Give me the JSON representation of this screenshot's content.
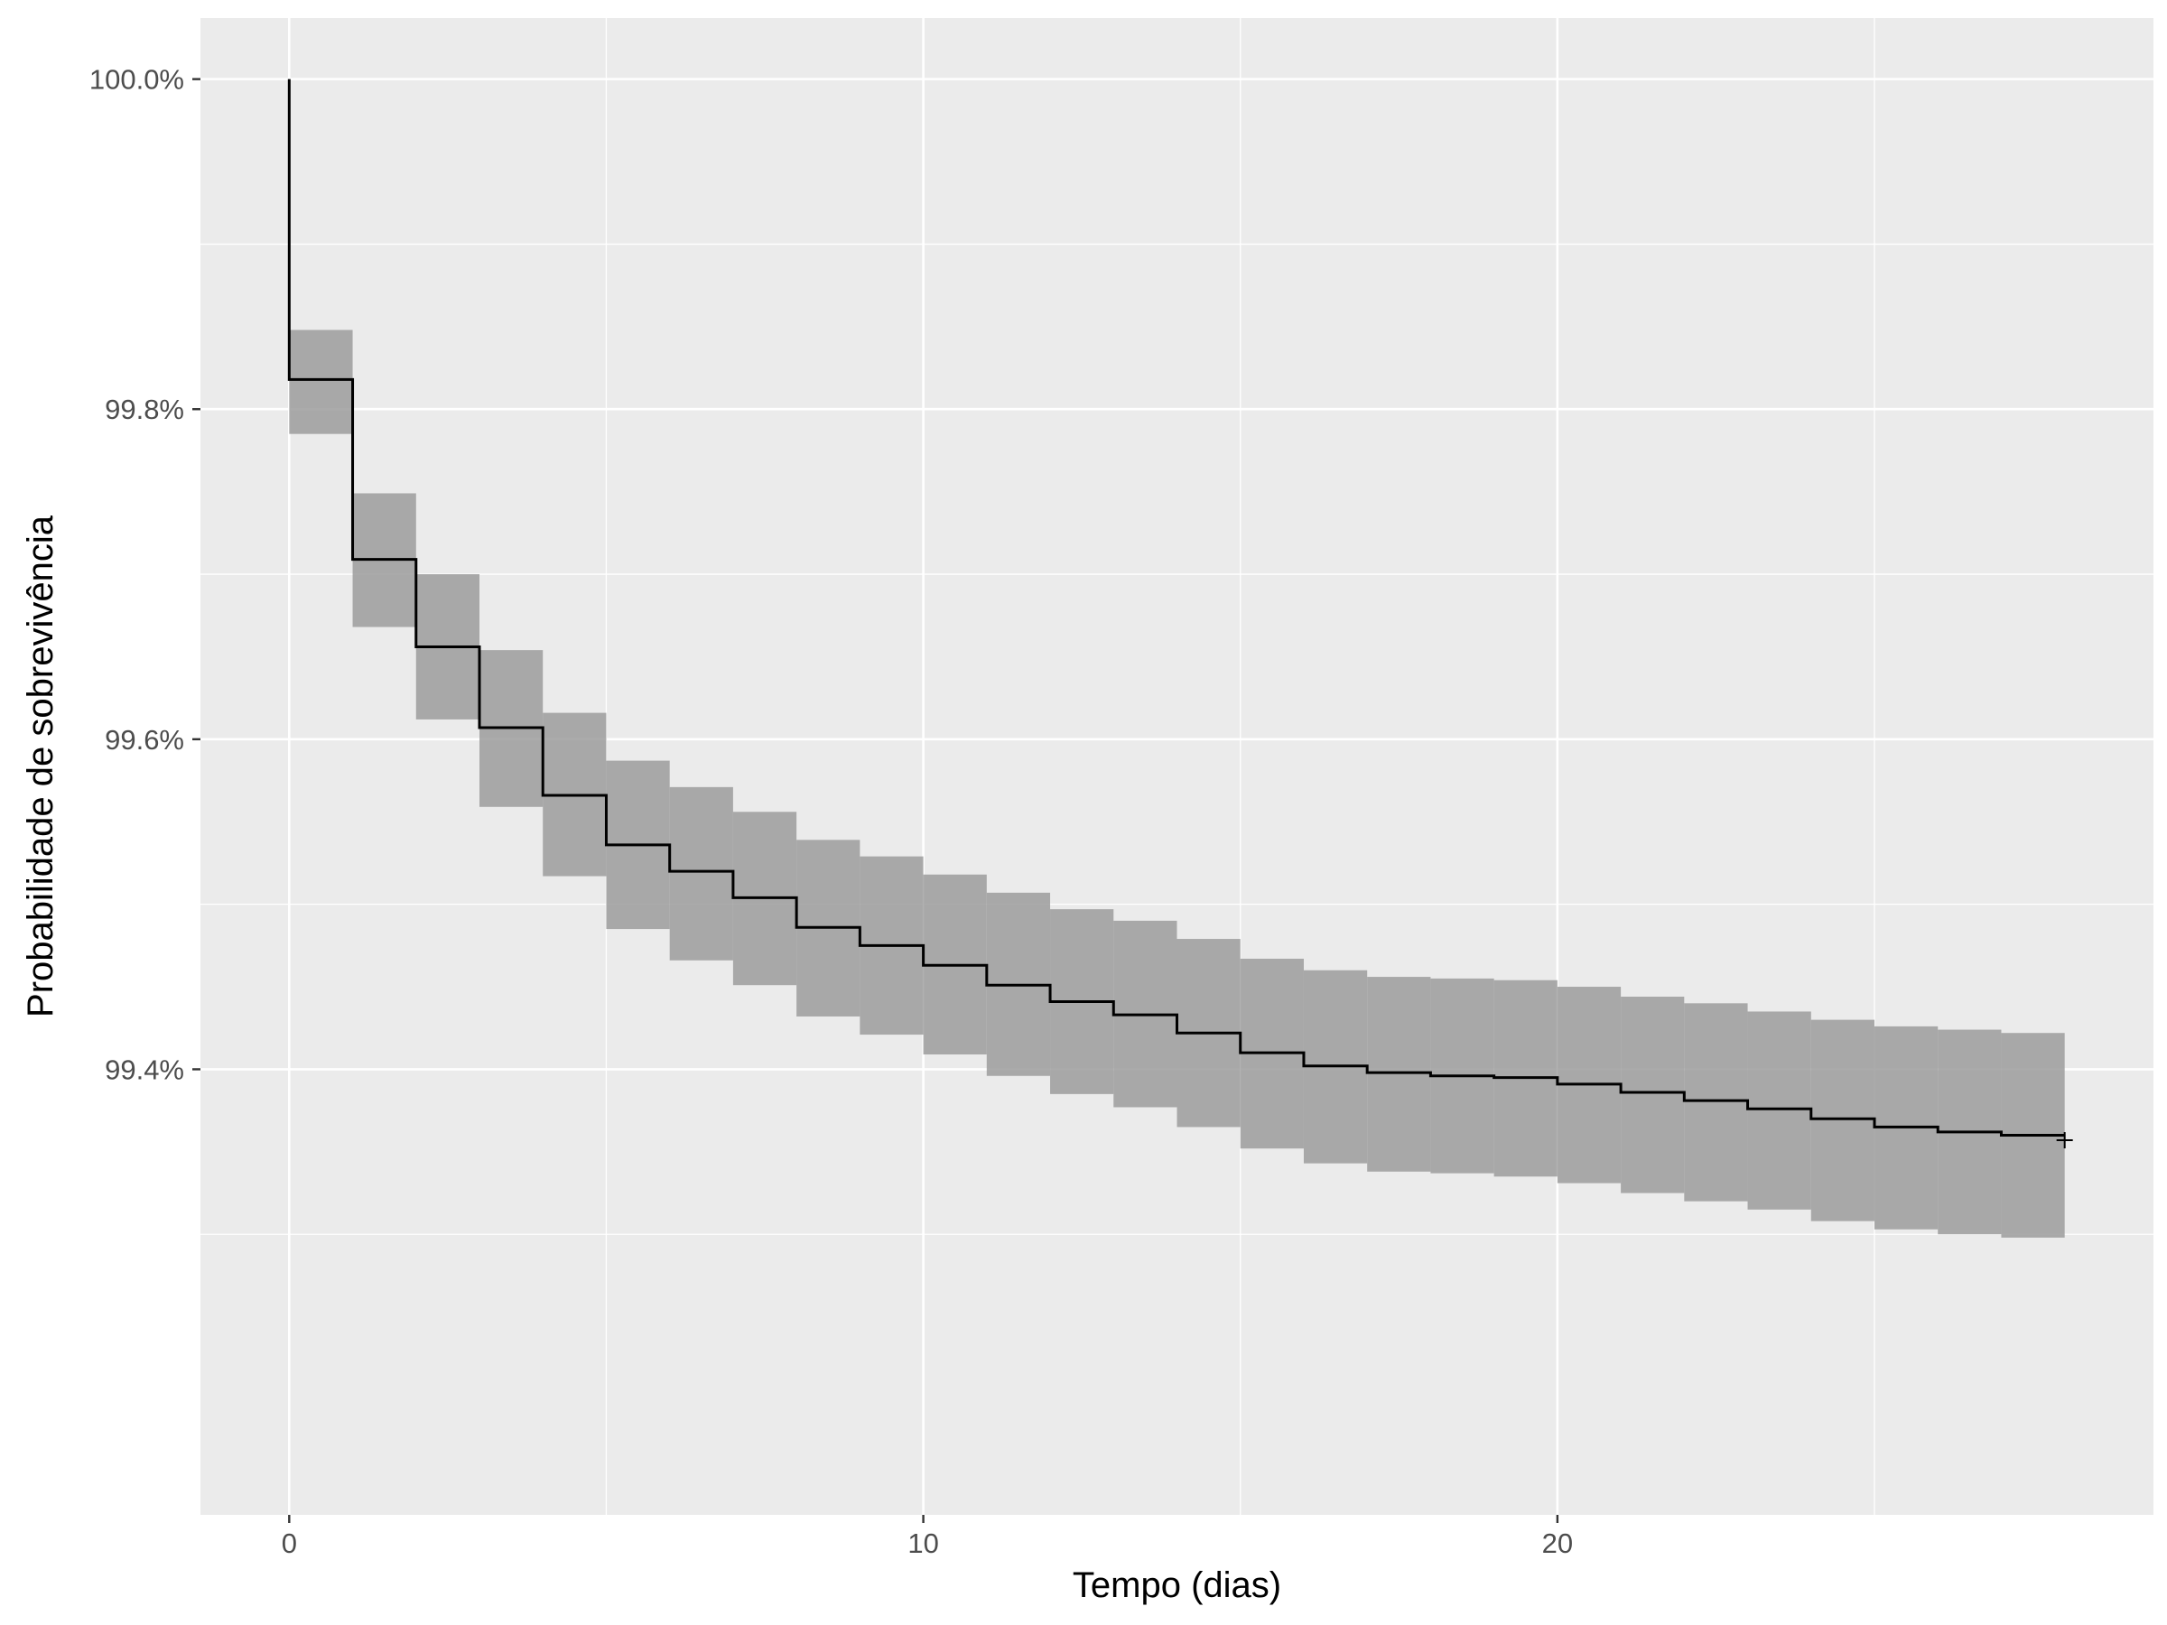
{
  "chart_data": {
    "type": "line",
    "subtype": "kaplan-meier step curve with confidence band",
    "title": "",
    "xlabel": "Tempo (dias)",
    "ylabel": "Probabilidade de sobrevivência",
    "xlim": [
      -1.4,
      29.4
    ],
    "ylim": [
      99.13,
      100.037
    ],
    "x_ticks": [
      0,
      10,
      20
    ],
    "x_tick_labels": [
      "0",
      "10",
      "20"
    ],
    "y_ticks": [
      99.4,
      99.6,
      99.8,
      100.0
    ],
    "y_tick_labels": [
      "99.4%",
      "99.6%",
      "99.8%",
      "100.0%"
    ],
    "grid": true,
    "colors": {
      "panel_background": "#ebebeb",
      "grid": "#ffffff",
      "line": "#000000",
      "band": "#999999"
    },
    "series": [
      {
        "name": "survival",
        "x": [
          0,
          1,
          2,
          3,
          4,
          5,
          6,
          7,
          8,
          9,
          10,
          11,
          12,
          13,
          14,
          15,
          16,
          17,
          18,
          19,
          20,
          21,
          22,
          23,
          24,
          25,
          26,
          27
        ],
        "y": [
          99.818,
          99.709,
          99.656,
          99.607,
          99.566,
          99.536,
          99.52,
          99.504,
          99.486,
          99.475,
          99.463,
          99.451,
          99.441,
          99.433,
          99.422,
          99.41,
          99.402,
          99.398,
          99.396,
          99.395,
          99.391,
          99.386,
          99.381,
          99.376,
          99.37,
          99.365,
          99.362,
          99.36
        ],
        "lower": [
          99.785,
          99.668,
          99.612,
          99.559,
          99.517,
          99.485,
          99.466,
          99.451,
          99.432,
          99.421,
          99.409,
          99.396,
          99.385,
          99.377,
          99.365,
          99.352,
          99.343,
          99.338,
          99.337,
          99.335,
          99.331,
          99.325,
          99.32,
          99.315,
          99.308,
          99.303,
          99.3,
          99.298
        ],
        "upper": [
          99.848,
          99.749,
          99.7,
          99.654,
          99.616,
          99.587,
          99.571,
          99.556,
          99.539,
          99.529,
          99.518,
          99.507,
          99.497,
          99.49,
          99.479,
          99.467,
          99.46,
          99.456,
          99.455,
          99.454,
          99.45,
          99.444,
          99.44,
          99.435,
          99.43,
          99.426,
          99.424,
          99.422
        ],
        "end_x": 28,
        "censor_marker": {
          "x": 28,
          "y": 99.357,
          "symbol": "+"
        }
      }
    ]
  }
}
